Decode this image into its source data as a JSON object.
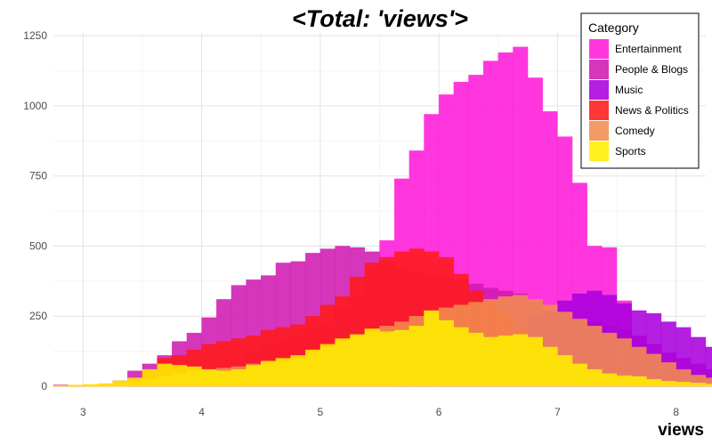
{
  "chart_data": {
    "type": "bar",
    "subtype": "overlaid histogram",
    "title": "<Total: 'views'>",
    "xlabel": "views",
    "ylabel": "",
    "xlim": [
      2.75,
      8.25
    ],
    "ylim": [
      0,
      1260
    ],
    "x_ticks": [
      3,
      4,
      5,
      6,
      7,
      8
    ],
    "y_ticks": [
      0,
      250,
      500,
      750,
      1000,
      1250
    ],
    "grid": true,
    "bin_start": 2.75,
    "bin_width": 0.125,
    "legend": {
      "title": "Category",
      "position": "top-right",
      "entries": [
        "Entertainment",
        "People & Blogs",
        "Music",
        "News & Politics",
        "Comedy",
        "Sports"
      ]
    },
    "series": [
      {
        "name": "Entertainment",
        "color": "#ff1ad9",
        "values": [
          0,
          0,
          0,
          0,
          0,
          2,
          5,
          10,
          20,
          35,
          50,
          70,
          90,
          120,
          150,
          160,
          175,
          205,
          215,
          275,
          320,
          415,
          520,
          740,
          840,
          970,
          1040,
          1085,
          1110,
          1160,
          1190,
          1210,
          1100,
          980,
          890,
          725,
          500,
          495,
          305,
          180,
          100,
          55,
          30,
          15,
          8,
          4
        ]
      },
      {
        "name": "People & Blogs",
        "color": "#d01ab3",
        "values": [
          5,
          2,
          5,
          8,
          20,
          55,
          80,
          110,
          160,
          190,
          245,
          310,
          360,
          380,
          395,
          440,
          445,
          475,
          490,
          500,
          495,
          480,
          445,
          420,
          410,
          395,
          390,
          380,
          365,
          350,
          340,
          330,
          300,
          270,
          260,
          240,
          230,
          215,
          200,
          175,
          150,
          120,
          100,
          80,
          60,
          45,
          30,
          20
        ]
      },
      {
        "name": "Music",
        "color": "#aa00dd",
        "values": [
          0,
          0,
          0,
          0,
          0,
          0,
          0,
          0,
          0,
          0,
          0,
          0,
          0,
          0,
          0,
          0,
          0,
          0,
          0,
          0,
          0,
          0,
          0,
          20,
          30,
          50,
          90,
          110,
          140,
          165,
          175,
          205,
          250,
          265,
          305,
          330,
          340,
          325,
          295,
          270,
          260,
          230,
          210,
          175,
          140,
          120,
          100,
          75,
          60,
          55,
          40,
          25,
          18
        ]
      },
      {
        "name": "News & Politics",
        "color": "#ff1a1a",
        "values": [
          3,
          3,
          5,
          8,
          10,
          25,
          55,
          100,
          110,
          130,
          150,
          160,
          170,
          180,
          200,
          210,
          220,
          250,
          290,
          320,
          390,
          440,
          460,
          480,
          490,
          480,
          460,
          400,
          340,
          300,
          260,
          200,
          160,
          120,
          90,
          60,
          40,
          25,
          15,
          8,
          4,
          2
        ]
      },
      {
        "name": "Comedy",
        "color": "#f28c50",
        "values": [
          2,
          3,
          5,
          7,
          10,
          15,
          25,
          35,
          45,
          55,
          60,
          65,
          70,
          80,
          85,
          90,
          100,
          120,
          140,
          160,
          180,
          200,
          215,
          230,
          250,
          265,
          280,
          290,
          300,
          310,
          320,
          325,
          310,
          290,
          265,
          240,
          215,
          190,
          170,
          140,
          115,
          85,
          60,
          40,
          30,
          20,
          12,
          8,
          5,
          3
        ]
      },
      {
        "name": "Sports",
        "color": "#ffee00",
        "values": [
          3,
          5,
          7,
          10,
          20,
          30,
          60,
          80,
          75,
          70,
          60,
          55,
          60,
          75,
          90,
          100,
          110,
          130,
          150,
          170,
          185,
          205,
          195,
          200,
          215,
          270,
          235,
          210,
          190,
          175,
          180,
          185,
          175,
          140,
          110,
          80,
          60,
          45,
          38,
          35,
          25,
          18,
          15,
          12,
          8,
          5,
          3,
          2,
          1,
          1
        ]
      }
    ]
  }
}
